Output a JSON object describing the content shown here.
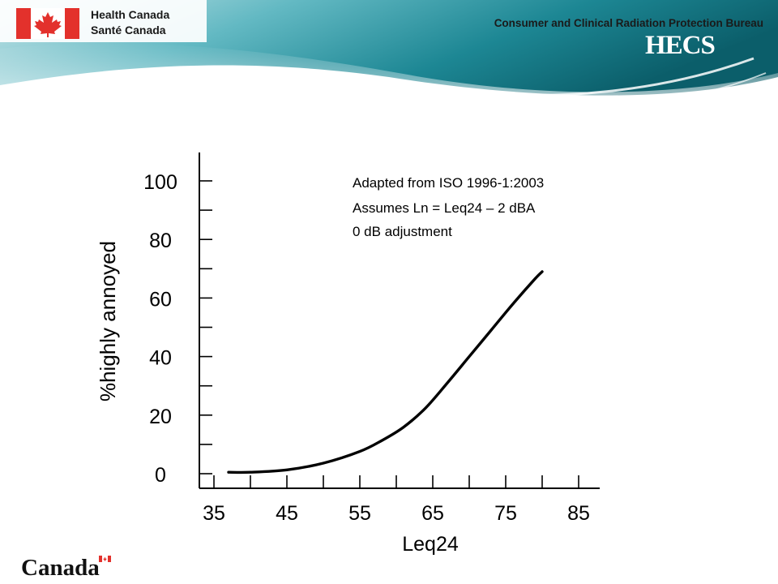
{
  "header": {
    "department_en": "Health Canada",
    "department_fr": "Santé Canada",
    "bureau": "Consumer and Clinical Radiation Protection Bureau",
    "logo_text": "HECS",
    "colors": {
      "teal_dark": "#0b5e6a",
      "teal_light": "#6fc3cb",
      "flag_red": "#e3312c"
    }
  },
  "footer": {
    "wordmark": "Canada"
  },
  "chart_data": {
    "type": "line",
    "title": "",
    "xlabel": "Leq24",
    "ylabel": "%highly annoyed",
    "xlim": [
      35,
      85
    ],
    "ylim": [
      0,
      100
    ],
    "xticks": [
      35,
      45,
      55,
      65,
      75,
      85
    ],
    "yticks": [
      0,
      20,
      40,
      60,
      80,
      100
    ],
    "annotations": [
      "Adapted from ISO 1996-1:2003",
      "Assumes Ln = Leq24 – 2 dBA",
      "0 dB adjustment"
    ],
    "grid": false,
    "series": [
      {
        "x": [
          37,
          40,
          45,
          50,
          55,
          58,
          61,
          64,
          67,
          70,
          73,
          76,
          79,
          80
        ],
        "values": [
          0.5,
          0.5,
          1.3,
          3.6,
          7.6,
          11.3,
          15.9,
          22.4,
          31.0,
          40.0,
          49.0,
          58.0,
          66.5,
          69.0
        ]
      }
    ]
  }
}
